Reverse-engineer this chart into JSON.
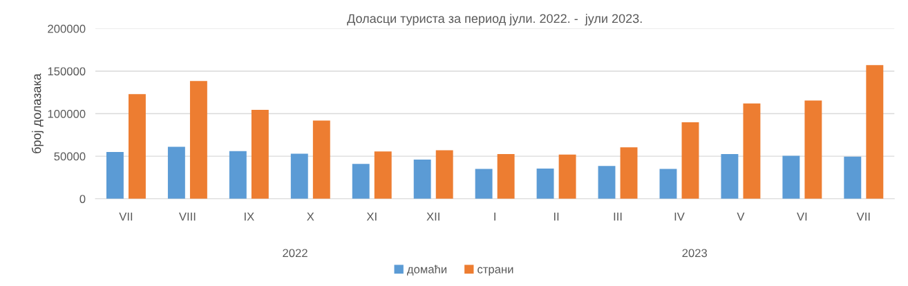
{
  "chart_data": {
    "type": "bar",
    "title": "Доласци туриста за период јули. 2022. -  јули 2023.",
    "ylabel": "број долазака",
    "categories": [
      "VII",
      "VIII",
      "IX",
      "X",
      "XI",
      "XII",
      "I",
      "II",
      "III",
      "IV",
      "V",
      "VI",
      "VII"
    ],
    "series": [
      {
        "name": "домаћи",
        "color": "#5b9bd5",
        "values": [
          55000,
          61000,
          56000,
          53000,
          41000,
          46000,
          35000,
          35500,
          38500,
          35000,
          52500,
          50500,
          49500
        ]
      },
      {
        "name": "страни",
        "color": "#ed7d31",
        "values": [
          123000,
          138500,
          104500,
          92000,
          55500,
          57000,
          52500,
          52000,
          60500,
          90000,
          112000,
          115500,
          157000
        ]
      }
    ],
    "ylim": [
      0,
      200000
    ],
    "yticks": [
      0,
      50000,
      100000,
      150000,
      200000
    ],
    "grid": "y",
    "legend": "bottom",
    "annotations": [
      "2022",
      "2023"
    ]
  }
}
